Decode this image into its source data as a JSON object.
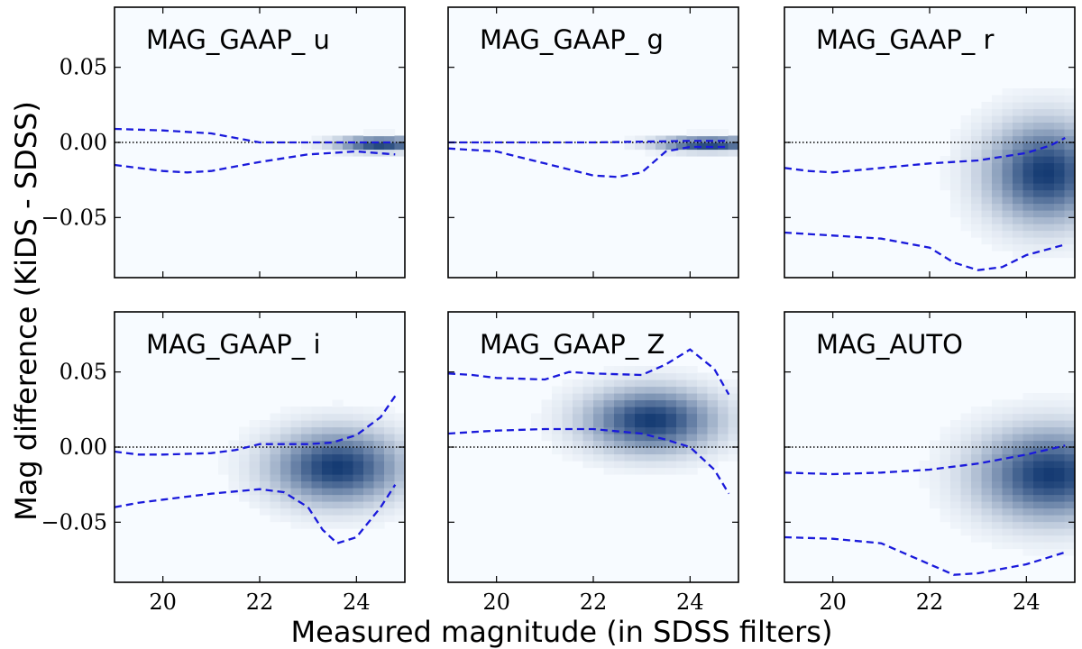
{
  "figure": {
    "xlabel": "Measured magnitude (in SDSS filters)",
    "ylabel": "Mag difference (KiDS - SDSS)"
  },
  "colors": {
    "envelope": "#1a1adb",
    "reference": "#000000",
    "density_low": "#f7fbff",
    "density_high": "#08306b",
    "frame": "#000000"
  },
  "chart_data": [
    {
      "type": "heatmap",
      "title": "MAG_GAAP_ u",
      "xlim": [
        19,
        25
      ],
      "ylim": [
        -0.09,
        0.09
      ],
      "xticks": [
        20,
        22,
        24
      ],
      "yticks": [
        0.05,
        0.0,
        -0.05
      ],
      "xticklabels": [
        "20",
        "22",
        "24"
      ],
      "yticklabels": [
        "0.05",
        "0.00",
        "−0.05"
      ],
      "reference_line": 0.0,
      "density_peak": {
        "x": 24.5,
        "y": -0.001,
        "sx": 0.6,
        "sy": 0.003
      },
      "upper_envelope": {
        "x": [
          19.0,
          20.0,
          21.0,
          21.5,
          22.0,
          23.0,
          24.0,
          24.8
        ],
        "y": [
          0.009,
          0.008,
          0.006,
          0.003,
          0.0,
          0.0,
          0.0,
          0.0
        ]
      },
      "lower_envelope": {
        "x": [
          19.0,
          20.0,
          20.5,
          21.0,
          22.0,
          23.0,
          24.0,
          24.8
        ],
        "y": [
          -0.015,
          -0.019,
          -0.02,
          -0.019,
          -0.013,
          -0.008,
          -0.006,
          -0.008
        ]
      }
    },
    {
      "type": "heatmap",
      "title": "MAG_GAAP_ g",
      "xlim": [
        19,
        25
      ],
      "ylim": [
        -0.09,
        0.09
      ],
      "xticks": [
        20,
        22,
        24
      ],
      "yticks": [
        0.05,
        0.0,
        -0.05
      ],
      "xticklabels": [
        "20",
        "22",
        "24"
      ],
      "yticklabels": [
        "0.05",
        "0.00",
        "−0.05"
      ],
      "reference_line": 0.0,
      "density_peak": {
        "x": 24.4,
        "y": -0.001,
        "sx": 0.7,
        "sy": 0.003
      },
      "upper_envelope": {
        "x": [
          19.0,
          20.0,
          22.0,
          24.0,
          24.8
        ],
        "y": [
          0.0,
          0.0,
          0.0,
          0.001,
          0.001
        ]
      },
      "lower_envelope": {
        "x": [
          19.0,
          20.0,
          21.0,
          22.0,
          22.5,
          23.0,
          23.5,
          24.0,
          24.8
        ],
        "y": [
          -0.004,
          -0.006,
          -0.014,
          -0.022,
          -0.023,
          -0.02,
          -0.006,
          -0.003,
          -0.003
        ]
      }
    },
    {
      "type": "heatmap",
      "title": "MAG_GAAP_ r",
      "xlim": [
        19,
        25
      ],
      "ylim": [
        -0.09,
        0.09
      ],
      "xticks": [
        20,
        22,
        24
      ],
      "yticks": [
        0.05,
        0.0,
        -0.05
      ],
      "xticklabels": [
        "20",
        "22",
        "24"
      ],
      "yticklabels": [
        "0.05",
        "0.00",
        "−0.05"
      ],
      "reference_line": 0.0,
      "density_peak": {
        "x": 24.4,
        "y": -0.02,
        "sx": 0.8,
        "sy": 0.022
      },
      "upper_envelope": {
        "x": [
          19.0,
          19.5,
          20.0,
          21.0,
          22.0,
          23.0,
          24.0,
          24.5,
          24.8
        ],
        "y": [
          -0.017,
          -0.019,
          -0.02,
          -0.017,
          -0.014,
          -0.012,
          -0.007,
          -0.002,
          0.003
        ]
      },
      "lower_envelope": {
        "x": [
          19.0,
          20.0,
          21.0,
          22.0,
          22.5,
          23.0,
          23.5,
          24.0,
          24.8
        ],
        "y": [
          -0.06,
          -0.062,
          -0.064,
          -0.07,
          -0.08,
          -0.085,
          -0.083,
          -0.075,
          -0.068
        ]
      }
    },
    {
      "type": "heatmap",
      "title": "MAG_GAAP_ i",
      "xlim": [
        19,
        25
      ],
      "ylim": [
        -0.09,
        0.09
      ],
      "xticks": [
        20,
        22,
        24
      ],
      "yticks": [
        0.05,
        0.0,
        -0.05
      ],
      "xticklabels": [
        "20",
        "22",
        "24"
      ],
      "yticklabels": [
        "0.05",
        "0.00",
        "−0.05"
      ],
      "reference_line": 0.0,
      "density_peak": {
        "x": 23.6,
        "y": -0.013,
        "sx": 0.9,
        "sy": 0.016
      },
      "upper_envelope": {
        "x": [
          19.0,
          19.5,
          20.0,
          21.0,
          21.5,
          22.0,
          22.5,
          23.0,
          23.5,
          24.0,
          24.5,
          24.8
        ],
        "y": [
          -0.003,
          -0.005,
          -0.005,
          -0.004,
          -0.002,
          0.002,
          0.002,
          0.002,
          0.003,
          0.008,
          0.02,
          0.034
        ]
      },
      "lower_envelope": {
        "x": [
          19.0,
          19.5,
          20.0,
          21.0,
          22.0,
          22.5,
          23.0,
          23.3,
          23.6,
          24.0,
          24.5,
          24.8
        ],
        "y": [
          -0.04,
          -0.037,
          -0.035,
          -0.031,
          -0.028,
          -0.03,
          -0.04,
          -0.055,
          -0.064,
          -0.06,
          -0.04,
          -0.025
        ]
      }
    },
    {
      "type": "heatmap",
      "title": "MAG_GAAP_ Z",
      "xlim": [
        19,
        25
      ],
      "ylim": [
        -0.09,
        0.09
      ],
      "xticks": [
        20,
        22,
        24
      ],
      "yticks": [
        0.05,
        0.0,
        -0.05
      ],
      "xticklabels": [
        "20",
        "22",
        "24"
      ],
      "yticklabels": [
        "0.05",
        "0.00",
        "−0.05"
      ],
      "reference_line": 0.0,
      "density_peak": {
        "x": 23.2,
        "y": 0.018,
        "sx": 0.9,
        "sy": 0.014
      },
      "upper_envelope": {
        "x": [
          19.0,
          19.5,
          20.0,
          21.0,
          21.5,
          22.0,
          23.0,
          23.5,
          24.0,
          24.5,
          24.8
        ],
        "y": [
          0.049,
          0.048,
          0.046,
          0.045,
          0.05,
          0.049,
          0.048,
          0.055,
          0.065,
          0.052,
          0.035
        ]
      },
      "lower_envelope": {
        "x": [
          19.0,
          19.5,
          20.0,
          21.0,
          22.0,
          23.0,
          23.5,
          24.0,
          24.5,
          24.8
        ],
        "y": [
          0.009,
          0.01,
          0.011,
          0.012,
          0.012,
          0.009,
          0.005,
          0.0,
          -0.015,
          -0.031
        ]
      }
    },
    {
      "type": "heatmap",
      "title": "MAG_AUTO",
      "xlim": [
        19,
        25
      ],
      "ylim": [
        -0.09,
        0.09
      ],
      "xticks": [
        20,
        22,
        24
      ],
      "yticks": [
        0.05,
        0.0,
        -0.05
      ],
      "xticklabels": [
        "20",
        "22",
        "24"
      ],
      "yticklabels": [
        "0.05",
        "0.00",
        "−0.05"
      ],
      "reference_line": 0.0,
      "density_peak": {
        "x": 24.5,
        "y": -0.018,
        "sx": 1.0,
        "sy": 0.02
      },
      "upper_envelope": {
        "x": [
          19.0,
          20.0,
          21.0,
          22.0,
          23.0,
          24.0,
          24.8
        ],
        "y": [
          -0.017,
          -0.018,
          -0.017,
          -0.015,
          -0.011,
          -0.005,
          0.001
        ]
      },
      "lower_envelope": {
        "x": [
          19.0,
          20.0,
          21.0,
          22.0,
          22.5,
          23.0,
          24.0,
          24.8
        ],
        "y": [
          -0.06,
          -0.061,
          -0.064,
          -0.078,
          -0.085,
          -0.084,
          -0.078,
          -0.07
        ]
      }
    }
  ]
}
